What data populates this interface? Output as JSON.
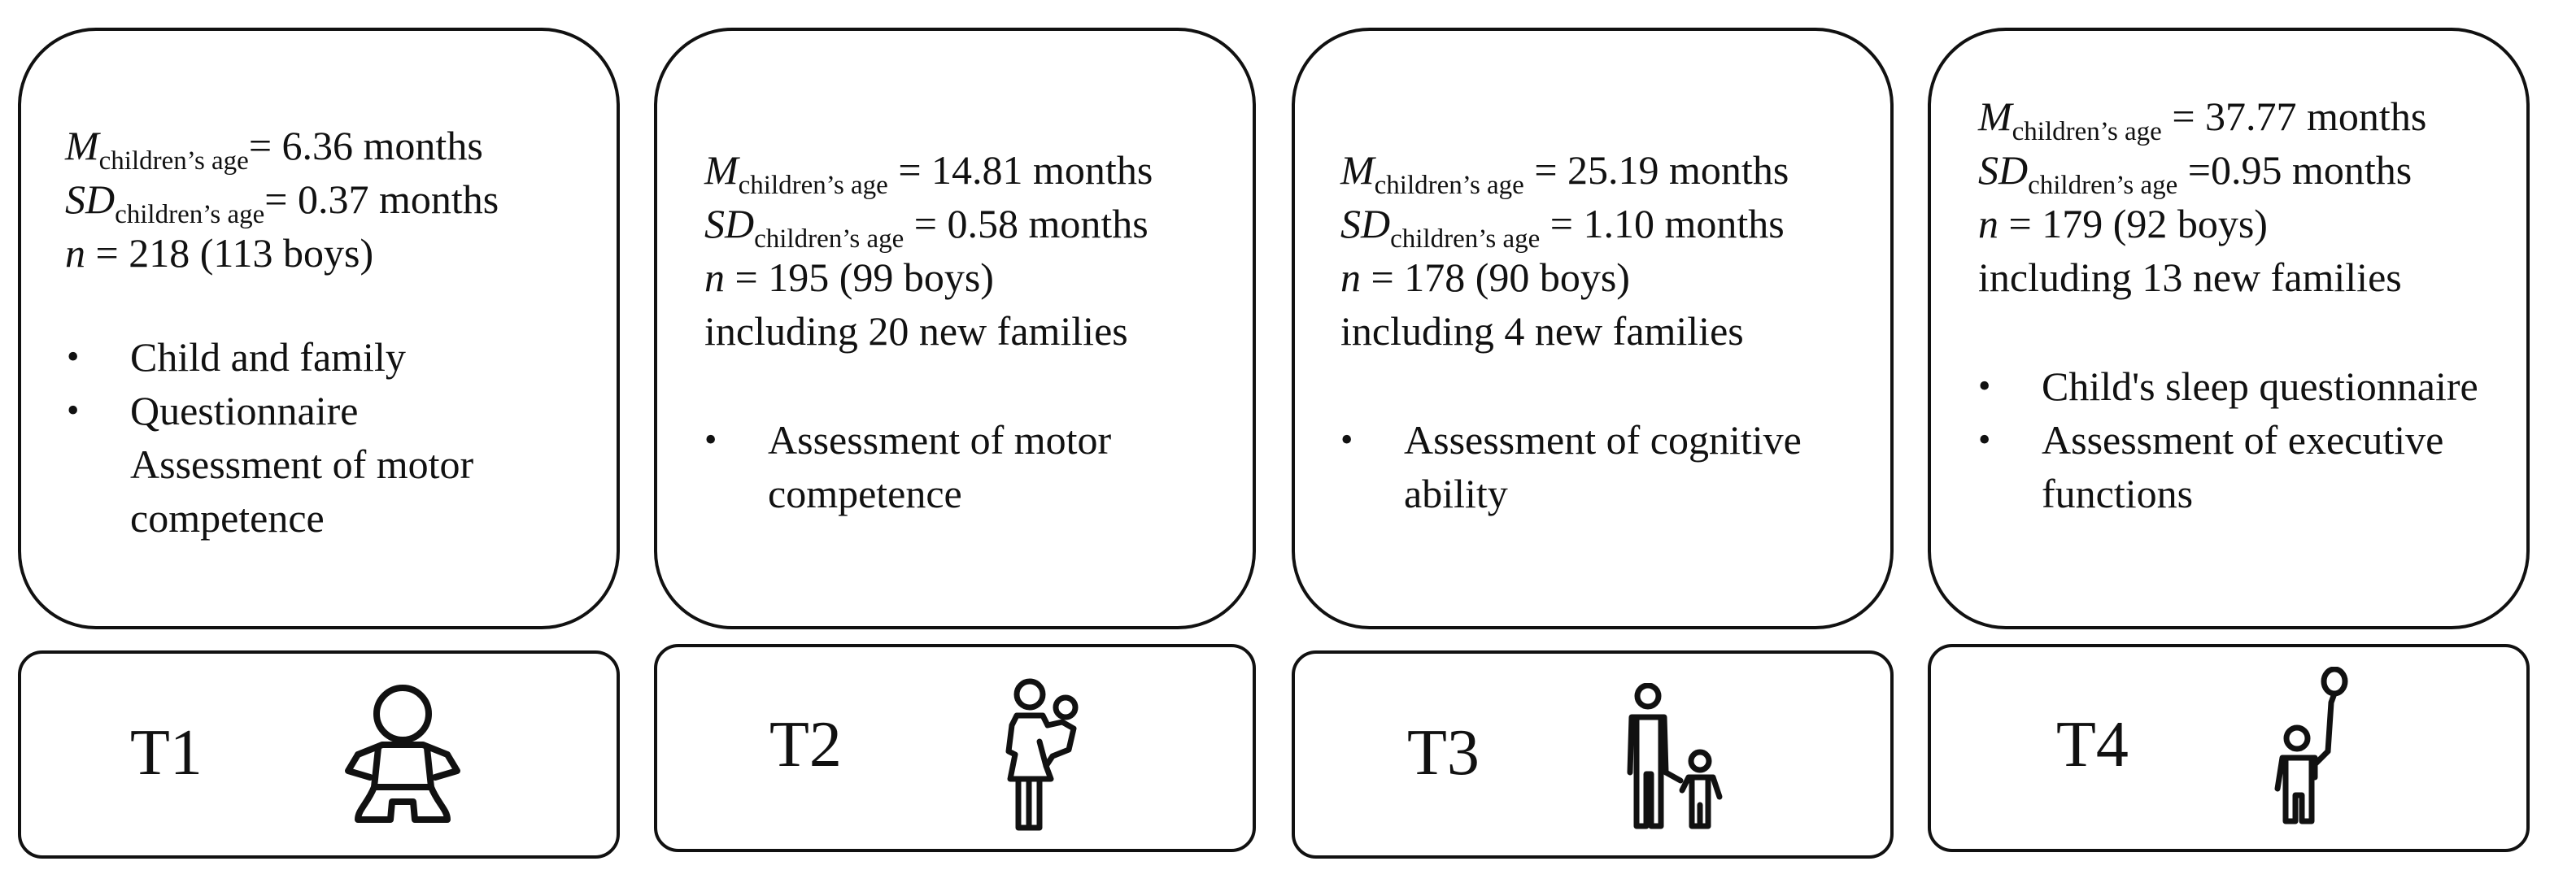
{
  "columns": [
    {
      "id": "t1",
      "label": "T1",
      "icon": "baby-icon",
      "m_label": "M",
      "sd_label": "SD",
      "age_subscript": "children’s age",
      "m_value": "= 6.36 months",
      "sd_value": "= 0.37 months",
      "n_label": "n",
      "n_value": " = 218 (113 boys)",
      "new_families": "",
      "bullets": [
        "Child and family",
        "Questionnaire Assessment of motor competence"
      ]
    },
    {
      "id": "t2",
      "label": "T2",
      "icon": "parent-holding-child-icon",
      "m_label": "M",
      "sd_label": "SD",
      "age_subscript": "children’s age",
      "m_value": " = 14.81 months",
      "sd_value": " = 0.58 months",
      "n_label": "n",
      "n_value": " = 195 (99 boys)",
      "new_families": "including 20 new families",
      "bullets": [
        "Assessment of motor competence"
      ]
    },
    {
      "id": "t3",
      "label": "T3",
      "icon": "adult-with-toddler-icon",
      "m_label": "M",
      "sd_label": "SD",
      "age_subscript": "children’s age",
      "m_value": " = 25.19 months",
      "sd_value": " = 1.10 months",
      "n_label": "n",
      "n_value": " = 178 (90 boys)",
      "new_families": "including 4 new families",
      "bullets": [
        "Assessment of cognitive ability"
      ]
    },
    {
      "id": "t4",
      "label": "T4",
      "icon": "child-with-balloon-icon",
      "m_label": "M",
      "sd_label": "SD",
      "age_subscript": "children’s age",
      "m_value": " = 37.77 months",
      "sd_value": " =0.95 months",
      "n_label": "n",
      "n_value": " = 179 (92 boys)",
      "new_families": "including 13 new families",
      "bullets": [
        "Child's sleep questionnaire",
        "Assessment of executive functions"
      ]
    }
  ]
}
